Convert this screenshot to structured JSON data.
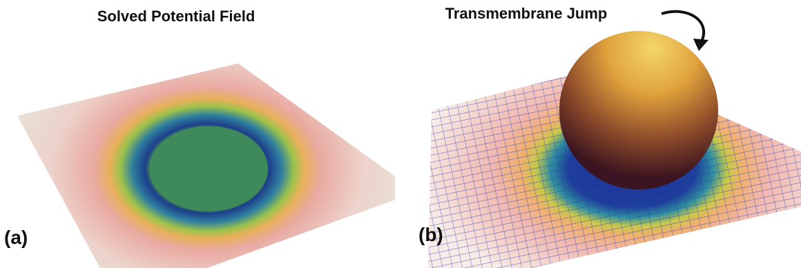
{
  "panels": [
    {
      "title": "Solved Potential Field",
      "label": "(a)"
    },
    {
      "title": "Transmembrane Jump",
      "label": "(b)"
    }
  ]
}
